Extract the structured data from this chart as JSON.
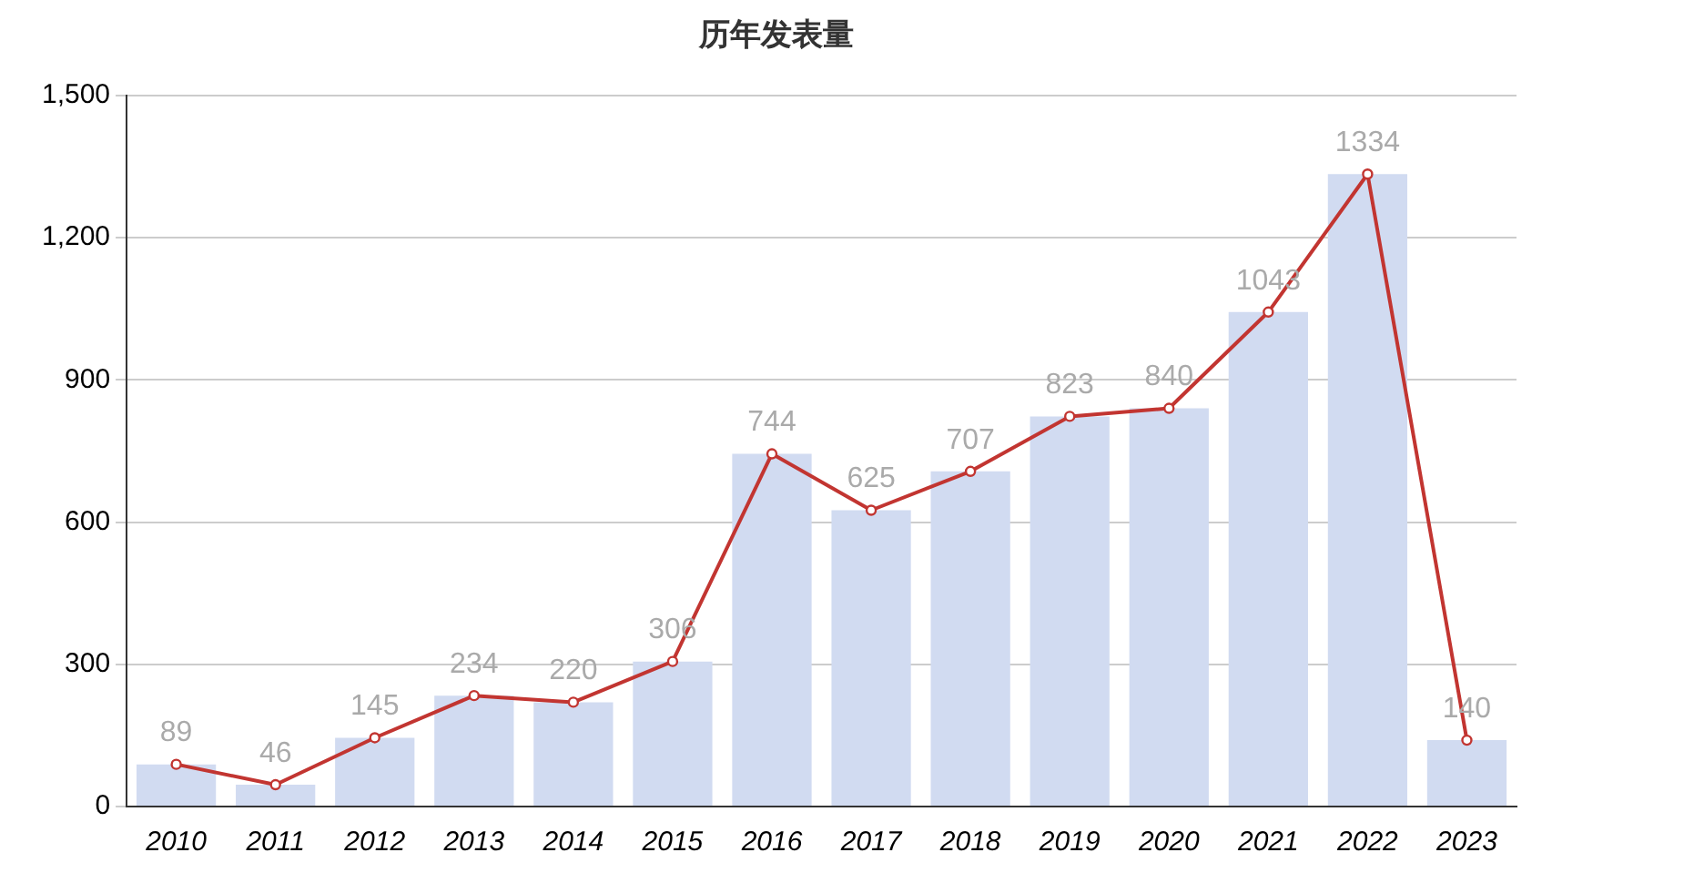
{
  "chart_data": {
    "type": "bar",
    "title": "历年发表量",
    "categories": [
      "2010",
      "2011",
      "2012",
      "2013",
      "2014",
      "2015",
      "2016",
      "2017",
      "2018",
      "2019",
      "2020",
      "2021",
      "2022",
      "2023"
    ],
    "series": [
      {
        "color": "#d1dbf1",
        "values": [
          89,
          46,
          145,
          234,
          220,
          306,
          744,
          625,
          707,
          823,
          840,
          1043,
          1334,
          140
        ]
      },
      {
        "type": "line",
        "color": "#c23531",
        "marker": "circle",
        "values": [
          89,
          46,
          145,
          234,
          220,
          306,
          744,
          625,
          707,
          823,
          840,
          1043,
          1334,
          140
        ],
        "value_labels": [
          "89",
          "46",
          "145",
          "234",
          "220",
          "306",
          "744",
          "625",
          "707",
          "823",
          "840",
          "1043",
          "1334",
          "140"
        ]
      }
    ],
    "ylim": [
      0,
      1500
    ],
    "yticks": [
      0,
      300,
      600,
      900,
      {
        "value": 1200,
        "label": "1,200"
      },
      {
        "value": 1500,
        "label": "1,500"
      }
    ],
    "grid": "y",
    "legend": false
  }
}
